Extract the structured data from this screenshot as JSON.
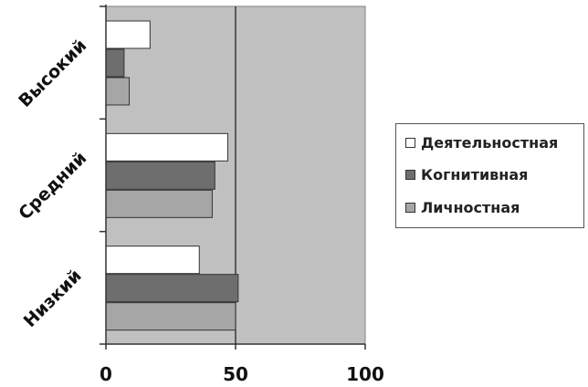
{
  "chart_data": {
    "type": "bar",
    "orientation": "horizontal",
    "categories": [
      "Высокий",
      "Средний",
      "Низкий"
    ],
    "series": [
      {
        "name": "Деятельностная",
        "values": [
          17,
          47,
          36
        ],
        "color": "#ffffff"
      },
      {
        "name": "Когнитивная",
        "values": [
          7,
          42,
          51
        ],
        "color": "#6e6e6e"
      },
      {
        "name": "Личностная",
        "values": [
          9,
          41,
          50
        ],
        "color": "#a6a6a6"
      }
    ],
    "x_ticks": [
      "0",
      "50",
      "100"
    ],
    "xlim": [
      0,
      100
    ],
    "reference_line": 50,
    "plot_background": "#c0c0c0",
    "legend_position": "right",
    "grid": false
  }
}
